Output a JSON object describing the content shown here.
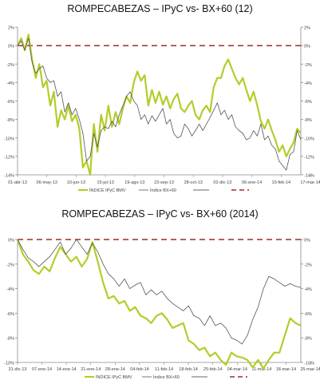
{
  "colors": {
    "ipyc": "#b5cc2a",
    "bx": "#555555",
    "zero": "#8b0000"
  },
  "chart_data": [
    {
      "type": "line",
      "title": "ROMPECABEZAS  –  IPyC vs-  BX+60 (12)",
      "ylim": [
        -14,
        2
      ],
      "yticks": [
        "2%",
        "0%",
        "-2%",
        "-4%",
        "-6%",
        "-8%",
        "-10%",
        "-12%",
        "-14%"
      ],
      "ytick_values": [
        2,
        0,
        -2,
        -4,
        -6,
        -8,
        -10,
        -12,
        -14
      ],
      "xticks": [
        "01-abr-13",
        "06-may-13",
        "10-jun-13",
        "15-jul-13",
        "19-ago-13",
        "23-sep-13",
        "28-oct-13",
        "02-dic-13",
        "06-ene-14",
        "10-feb-14",
        "17-mar-14"
      ],
      "legend": [
        "ÍNDICE IPyC BMV",
        "Índice BX+60",
        "",
        ""
      ],
      "series": [
        {
          "name": "ÍNDICE IPyC BMV",
          "values": [
            0,
            0.8,
            -0.5,
            1.2,
            -1.5,
            -3.5,
            -2,
            -4.5,
            -3.8,
            -6.5,
            -5,
            -8.8,
            -7,
            -8,
            -6.5,
            -8.2,
            -7.5,
            -9,
            -13.2,
            -12.5,
            -14,
            -8.5,
            -11.5,
            -7.5,
            -9.2,
            -6.5,
            -8.8,
            -7.2,
            -8.5,
            -6.8,
            -5.5,
            -6.2,
            -4,
            -2.8,
            -3.8,
            -3.2,
            -6.5,
            -4.8,
            -6.2,
            -5,
            -6.4,
            -5.5,
            -6.8,
            -5.8,
            -5.2,
            -6.8,
            -7.2,
            -6.5,
            -6,
            -7.5,
            -8,
            -7,
            -6.5,
            -7.2,
            -4.5,
            -3.5,
            -3.5,
            -2.2,
            -1.5,
            -2.5,
            -3.5,
            -4.2,
            -3.5,
            -4.8,
            -6,
            -5,
            -6.5,
            -8.2,
            -9,
            -8,
            -9.2,
            -10.2,
            -11.5,
            -10.8,
            -12,
            -11.2,
            -10.5,
            -9,
            -9.5
          ]
        },
        {
          "name": "Índice BX+60",
          "values": [
            0,
            0.5,
            -0.5,
            0.8,
            -1.8,
            -3,
            -2.5,
            -2.2,
            -3.5,
            -4,
            -3.8,
            -5.5,
            -5,
            -7.2,
            -6.2,
            -7.5,
            -6.8,
            -8,
            -9.5,
            -12.5,
            -12,
            -9.5,
            -11,
            -9.2,
            -8.8,
            -9,
            -8.2,
            -8.8,
            -7.5,
            -6.5,
            -5.5,
            -5,
            -6,
            -6.5,
            -8,
            -7.5,
            -8.5,
            -7.6,
            -8.2,
            -7.5,
            -6.8,
            -8.5,
            -8,
            -9.5,
            -10,
            -9.8,
            -8.5,
            -9,
            -9.8,
            -9.2,
            -8.5,
            -9.2,
            -8.5,
            -7.8,
            -7,
            -6.2,
            -7.5,
            -7,
            -8,
            -7.5,
            -8.8,
            -9.2,
            -9.5,
            -10.2,
            -10,
            -9.2,
            -9.8,
            -8.5,
            -10.2,
            -9.8,
            -10.8,
            -11.2,
            -12.5,
            -13,
            -13.5,
            -11.8,
            -11.5,
            -9.2,
            -10.2
          ]
        }
      ]
    },
    {
      "type": "line",
      "title": "ROMPECABEZAS  –  IPyC vs-  BX+60 (2014)",
      "ylim": [
        -10,
        0
      ],
      "yticks": [
        "0%",
        "-2%",
        "-4%",
        "-6%",
        "-8%",
        "-10%"
      ],
      "ytick_values": [
        0,
        -2,
        -4,
        -6,
        -8,
        -10
      ],
      "xticks": [
        "31-dic-13",
        "07-ene-14",
        "14-ene-14",
        "21-ene-14",
        "28-ene-14",
        "04-feb-14",
        "11-feb-14",
        "18-feb-14",
        "25-feb-14",
        "04-mar-14",
        "11-mar-14",
        "18-mar-14",
        "25-mar-14"
      ],
      "legend": [
        "ÍNDICE IPyC BMV",
        "Índice BX+60",
        "",
        ""
      ],
      "series": [
        {
          "name": "ÍNDICE IPyC BMV",
          "values": [
            0,
            -1.2,
            -1.8,
            -2.5,
            -2.8,
            -2.2,
            -2.6,
            -1.5,
            -0.6,
            -1.2,
            -1.8,
            -1.4,
            -2.2,
            -1.6,
            -0.2,
            -1.8,
            -3.5,
            -4.8,
            -4.6,
            -5.2,
            -5,
            -5.8,
            -5.5,
            -6.2,
            -6.4,
            -6.8,
            -6.2,
            -6,
            -6.5,
            -7.2,
            -7,
            -6.8,
            -8.2,
            -8.5,
            -9,
            -8.8,
            -9.5,
            -9.2,
            -9.8,
            -10.2,
            -9.2,
            -9.5,
            -9.6,
            -9.8,
            -10.4,
            -9.8,
            -10.5,
            -9.8,
            -9.2,
            -9.2,
            -7.8,
            -6.4,
            -6.8,
            -7
          ]
        },
        {
          "name": "Índice BX+60",
          "values": [
            0,
            -0.8,
            -1.5,
            -1.8,
            -2.2,
            -1.8,
            -1.4,
            -0.8,
            -0.2,
            -1.2,
            -0.7,
            0,
            -0.6,
            -1.2,
            -0.3,
            -1,
            -2,
            -2.8,
            -3.2,
            -3.8,
            -3.2,
            -4,
            -3.7,
            -3.5,
            -4.5,
            -4.1,
            -4.5,
            -4.2,
            -4.8,
            -5.2,
            -5.5,
            -5.8,
            -5.4,
            -6.2,
            -6.4,
            -7,
            -6.2,
            -7,
            -6.8,
            -7.2,
            -8,
            -8.2,
            -8.5,
            -7.8,
            -6.5,
            -5.5,
            -4,
            -3,
            -3.2,
            -3.5,
            -3.8,
            -3.6,
            -3.8,
            -3.9
          ]
        }
      ]
    }
  ]
}
